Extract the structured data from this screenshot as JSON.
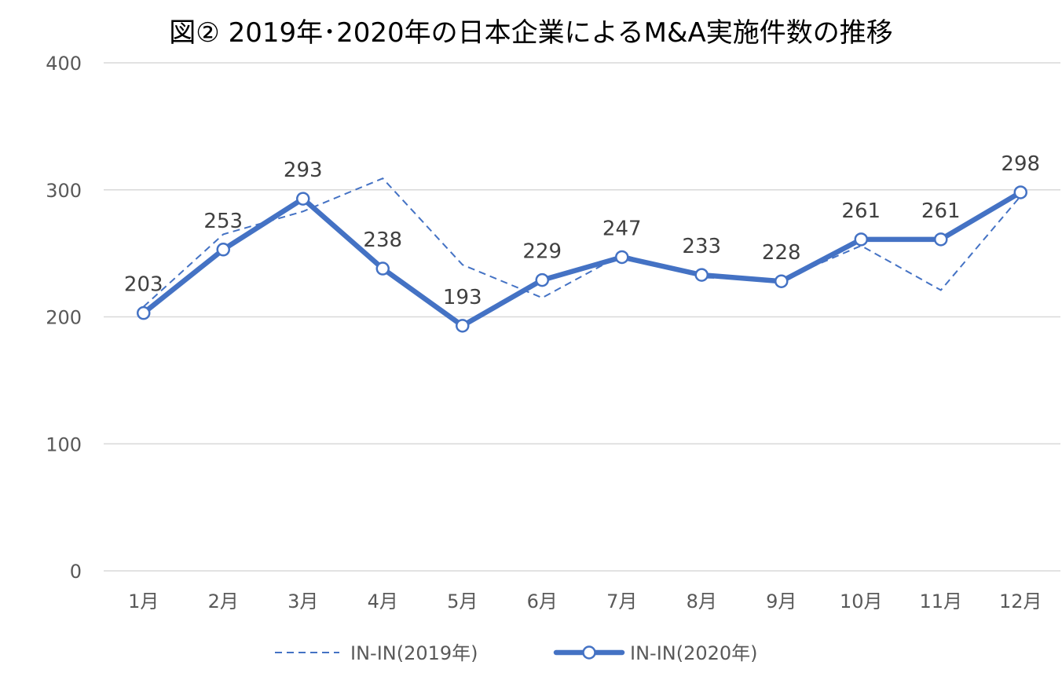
{
  "chart_data": {
    "type": "line",
    "title": "図② 2019年･2020年の日本企業によるM&A実施件数の推移",
    "categories": [
      "1月",
      "2月",
      "3月",
      "4月",
      "5月",
      "6月",
      "7月",
      "8月",
      "9月",
      "10月",
      "11月",
      "12月"
    ],
    "ylim": [
      0,
      400
    ],
    "yticks": [
      "0",
      "100",
      "200",
      "300",
      "400"
    ],
    "grid": true,
    "legend_position": "bottom",
    "series": [
      {
        "name": "IN-IN(2019年)",
        "values": [
          208,
          265,
          283,
          309,
          241,
          215,
          249,
          231,
          229,
          256,
          221,
          295
        ],
        "style": "dashed",
        "color": "#4472C4",
        "data_labels": false
      },
      {
        "name": "IN-IN(2020年)",
        "values": [
          203,
          253,
          293,
          238,
          193,
          229,
          247,
          233,
          228,
          261,
          261,
          298
        ],
        "style": "solid-thick-markers",
        "color": "#4472C4",
        "data_labels": true
      }
    ]
  }
}
